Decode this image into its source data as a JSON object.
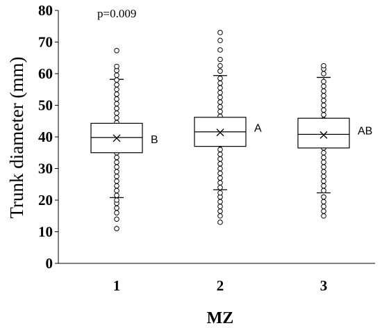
{
  "chart_data": {
    "type": "box",
    "title": "",
    "xlabel": "MZ",
    "ylabel": "Trunk diameter (mm)",
    "ylim": [
      0,
      80
    ],
    "yticks": [
      "0",
      "10",
      "20",
      "30",
      "40",
      "50",
      "60",
      "70",
      "80"
    ],
    "annotation": "p=0.009",
    "grid": false,
    "categories": [
      "1",
      "2",
      "3"
    ],
    "boxes": [
      {
        "category": "1",
        "whisker_low": 20.8,
        "q1": 35,
        "median": 39.8,
        "mean": 39.6,
        "q3": 44.3,
        "whisker_high": 58.2,
        "group_letter": "B",
        "outliers": [
          11,
          14,
          16,
          17.5,
          19,
          20,
          59.5,
          61,
          62.3,
          67.3
        ]
      },
      {
        "category": "2",
        "whisker_low": 23.3,
        "q1": 37,
        "median": 41.6,
        "mean": 41.4,
        "q3": 46.2,
        "whisker_high": 59.4,
        "group_letter": "A",
        "outliers": [
          13,
          15,
          16.5,
          18,
          19.5,
          21,
          22.3,
          60.8,
          62.5,
          64.5,
          67.5,
          70.5,
          73
        ]
      },
      {
        "category": "3",
        "whisker_low": 22.3,
        "q1": 36.5,
        "median": 40.8,
        "mean": 40.6,
        "q3": 45.9,
        "whisker_high": 58.8,
        "group_letter": "AB",
        "outliers": [
          15,
          16.5,
          18,
          19.5,
          21,
          60,
          61.5,
          62.5
        ]
      }
    ],
    "inner_points": {
      "1": [
        21.5,
        23,
        24.5,
        26,
        27.5,
        29,
        30.5,
        32,
        33.5,
        35,
        36.5,
        38,
        40,
        41.5,
        43,
        44.5,
        46,
        47.5,
        49,
        50.5,
        52,
        53.5,
        55,
        56.5,
        58
      ],
      "2": [
        24,
        25.5,
        27,
        28.5,
        30,
        31.5,
        33,
        34.5,
        36,
        37.5,
        39,
        40.5,
        42,
        43.5,
        45,
        46.5,
        48,
        49.5,
        51,
        52.5,
        54,
        55.5,
        57,
        58.5
      ],
      "3": [
        23,
        24.5,
        26,
        27.5,
        29,
        30.5,
        32,
        33.5,
        35,
        36.5,
        38,
        39.5,
        41,
        42.5,
        44,
        45.5,
        47,
        48.5,
        50,
        51.5,
        53,
        54.5,
        56,
        57.5
      ]
    }
  }
}
